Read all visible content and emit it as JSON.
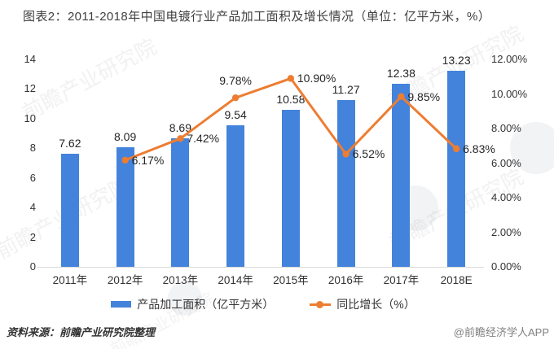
{
  "header": {
    "title": "图表2：2011-2018年中国电镀行业产品加工面积及增长情况（单位：亿平方米，%）"
  },
  "chart_data": {
    "type": "combo",
    "categories": [
      "2011年",
      "2012年",
      "2013年",
      "2014年",
      "2015年",
      "2016年",
      "2017年",
      "2018E"
    ],
    "series": [
      {
        "name": "产品加工面积（亿平方米）",
        "type": "bar",
        "axis": "left",
        "values": [
          7.62,
          8.09,
          8.69,
          9.54,
          10.58,
          11.27,
          12.38,
          13.23
        ],
        "labels": [
          "7.62",
          "8.09",
          "8.69",
          "9.54",
          "10.58",
          "11.27",
          "12.38",
          "13.23"
        ]
      },
      {
        "name": "同比增长（%）",
        "type": "line",
        "axis": "right",
        "x_start_index": 1,
        "values": [
          6.17,
          7.42,
          9.78,
          10.9,
          6.52,
          9.85,
          6.83
        ],
        "labels": [
          "6.17%",
          "7.42%",
          "9.78%",
          "10.90%",
          "6.52%",
          "9.85%",
          "6.83%"
        ],
        "label_positions": [
          "right",
          "right",
          "above",
          "right",
          "right",
          "right",
          "right"
        ]
      }
    ],
    "left_axis": {
      "min": 0,
      "max": 14,
      "step": 2
    },
    "right_axis": {
      "min": 0,
      "max": 12,
      "step": 2,
      "decimals": 2,
      "suffix": "%"
    },
    "grid": false,
    "legend_position": "bottom",
    "title": "图表2：2011-2018年中国电镀行业产品加工面积及增长情况（单位：亿平方米，%）"
  },
  "colors": {
    "bar": "#4383DB",
    "line": "#ED7D31",
    "title_text": "#404040",
    "axis_text": "#333333",
    "credit_text": "#7f7f7f"
  },
  "footer": {
    "source": "资料来源：前瞻产业研究院整理",
    "credit": "@前瞻经济学人APP"
  },
  "watermark": {
    "text": "前瞻产业研究院"
  }
}
